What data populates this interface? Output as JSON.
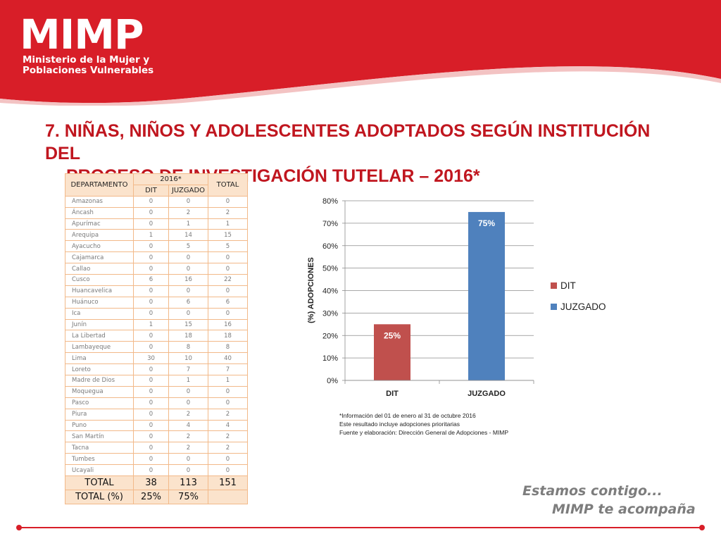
{
  "logo": {
    "name": "MIMP",
    "line1": "Ministerio de la Mujer y",
    "line2": "Poblaciones Vulnerables"
  },
  "title": {
    "line1": "7. NIÑAS, NIÑOS Y ADOLESCENTES ADOPTADOS SEGÚN INSTITUCIÓN DEL",
    "line2": "PROCESO DE INVESTIGACIÓN TUTELAR – 2016*"
  },
  "table": {
    "headers": {
      "departamento": "DEPARTAMENTO",
      "year": "2016*",
      "dit": "DIT",
      "juzgado": "JUZGADO",
      "total": "TOTAL"
    },
    "rows": [
      [
        "Amazonas",
        "0",
        "0",
        "0"
      ],
      [
        "Áncash",
        "0",
        "2",
        "2"
      ],
      [
        "Apurímac",
        "0",
        "1",
        "1"
      ],
      [
        "Arequipa",
        "1",
        "14",
        "15"
      ],
      [
        "Ayacucho",
        "0",
        "5",
        "5"
      ],
      [
        "Cajamarca",
        "0",
        "0",
        "0"
      ],
      [
        "Callao",
        "0",
        "0",
        "0"
      ],
      [
        "Cusco",
        "6",
        "16",
        "22"
      ],
      [
        "Huancavelica",
        "0",
        "0",
        "0"
      ],
      [
        "Huánuco",
        "0",
        "6",
        "6"
      ],
      [
        "Ica",
        "0",
        "0",
        "0"
      ],
      [
        "Junín",
        "1",
        "15",
        "16"
      ],
      [
        "La Libertad",
        "0",
        "18",
        "18"
      ],
      [
        "Lambayeque",
        "0",
        "8",
        "8"
      ],
      [
        "Lima",
        "30",
        "10",
        "40"
      ],
      [
        "Loreto",
        "0",
        "7",
        "7"
      ],
      [
        "Madre de Dios",
        "0",
        "1",
        "1"
      ],
      [
        "Moquegua",
        "0",
        "0",
        "0"
      ],
      [
        "Pasco",
        "0",
        "0",
        "0"
      ],
      [
        "Piura",
        "0",
        "2",
        "2"
      ],
      [
        "Puno",
        "0",
        "4",
        "4"
      ],
      [
        "San Martín",
        "0",
        "2",
        "2"
      ],
      [
        "Tacna",
        "0",
        "2",
        "2"
      ],
      [
        "Tumbes",
        "0",
        "0",
        "0"
      ],
      [
        "Ucayali",
        "0",
        "0",
        "0"
      ]
    ],
    "total": {
      "label": "TOTAL",
      "dit": "38",
      "juzgado": "113",
      "total": "151"
    },
    "total_pct": {
      "label": "TOTAL (%)",
      "dit": "25%",
      "juzgado": "75%",
      "total": ""
    }
  },
  "chart_data": {
    "type": "bar",
    "categories": [
      "DIT",
      "JUZGADO"
    ],
    "values": [
      25,
      75
    ],
    "data_labels": [
      "25%",
      "75%"
    ],
    "colors": [
      "#c0504d",
      "#4f81bd"
    ],
    "ylabel": "(%) ADOPCIONES",
    "ylim": [
      0,
      80
    ],
    "yticks": [
      "0%",
      "10%",
      "20%",
      "30%",
      "40%",
      "50%",
      "60%",
      "70%",
      "80%"
    ],
    "legend": [
      "DIT",
      "JUZGADO"
    ],
    "legend_position": "right",
    "grid": true
  },
  "notes": [
    "*Información del  01 de enero al 31 de octubre 2016",
    "Este resultado incluye adopciones prioritarias",
    "Fuente y elaboración: Dirección General de Adopciones - MIMP"
  ],
  "slogan": {
    "line1": "Estamos contigo...",
    "line2": "MIMP te acompaña"
  },
  "colors": {
    "brand_red": "#d81e28",
    "title_red": "#c0161f",
    "dit": "#c0504d",
    "juzgado": "#4f81bd"
  }
}
